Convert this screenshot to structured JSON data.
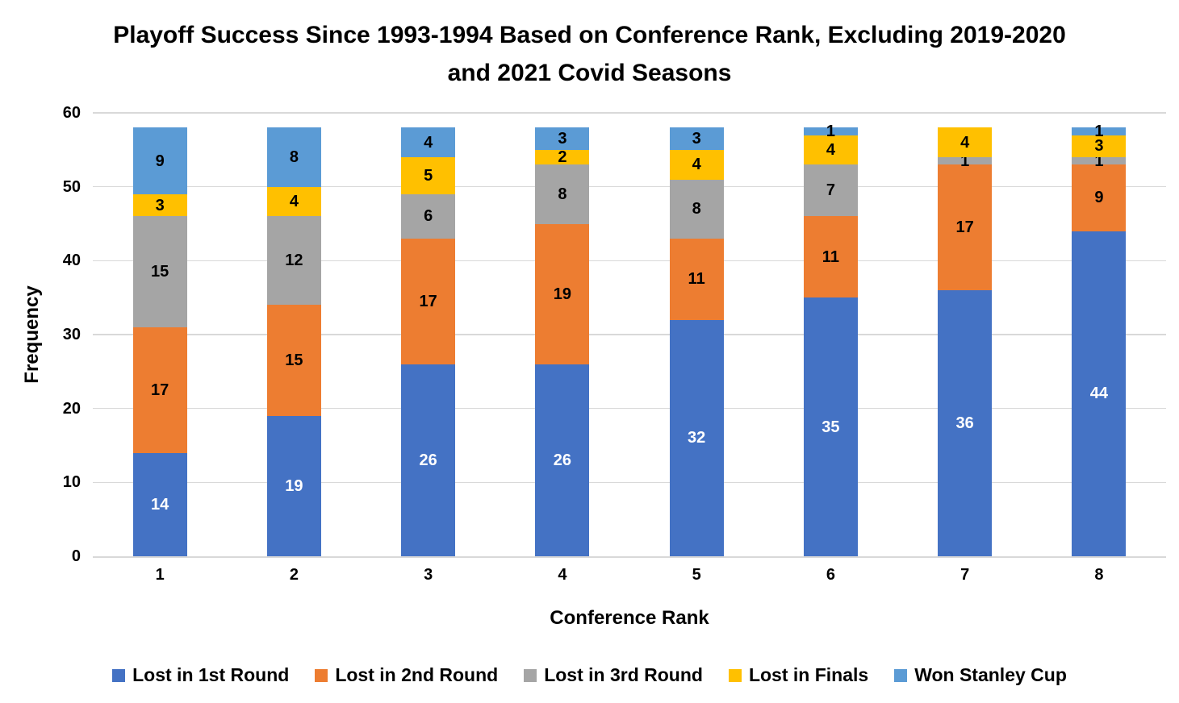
{
  "title": "Playoff Success Since 1993-1994 Based on Conference Rank, Excluding 2019-2020 and 2021 Covid Seasons",
  "chart_data": {
    "type": "bar",
    "stacked": true,
    "title": "Playoff Success Since 1993-1994 Based on Conference Rank, Excluding 2019-2020 and 2021 Covid Seasons",
    "xlabel": "Conference Rank",
    "ylabel": "Frequency",
    "categories": [
      "1",
      "2",
      "3",
      "4",
      "5",
      "6",
      "7",
      "8"
    ],
    "series": [
      {
        "name": "Lost in 1st Round",
        "color": "#4472C4",
        "label_color": "#FFFFFF",
        "values": [
          14,
          19,
          26,
          26,
          32,
          35,
          36,
          44
        ]
      },
      {
        "name": "Lost in 2nd Round",
        "color": "#ED7D31",
        "label_color": "#000000",
        "values": [
          17,
          15,
          17,
          19,
          11,
          11,
          17,
          9
        ]
      },
      {
        "name": "Lost in 3rd Round",
        "color": "#A5A5A5",
        "label_color": "#000000",
        "values": [
          15,
          12,
          6,
          8,
          8,
          7,
          1,
          1
        ]
      },
      {
        "name": "Lost in Finals",
        "color": "#FFC000",
        "label_color": "#000000",
        "values": [
          3,
          4,
          5,
          2,
          4,
          4,
          4,
          3
        ]
      },
      {
        "name": "Won Stanley Cup",
        "color": "#5B9BD5",
        "label_color": "#000000",
        "values": [
          9,
          8,
          4,
          3,
          3,
          1,
          0,
          1
        ]
      }
    ],
    "ylim": [
      0,
      60
    ],
    "ytick_step": 10,
    "yticks": [
      0,
      10,
      20,
      30,
      40,
      50,
      60
    ],
    "grid": true,
    "legend_position": "bottom",
    "bar_totals": [
      58,
      58,
      58,
      58,
      58,
      58,
      58,
      58
    ]
  },
  "colors": {
    "gridline": "#D9D9D9",
    "axis_line": "#D9D9D9",
    "title_text": "#000000",
    "background": "#FFFFFF"
  }
}
